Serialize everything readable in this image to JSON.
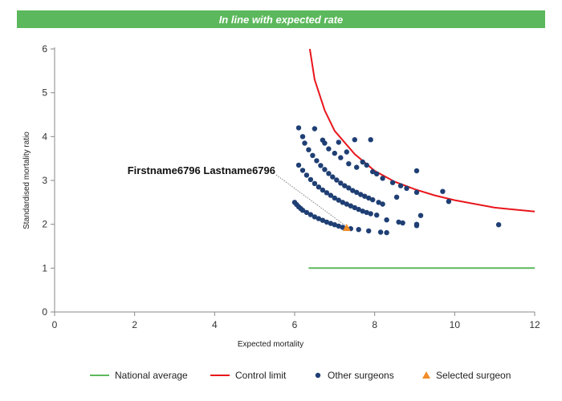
{
  "banner": {
    "text": "In line with expected rate",
    "color": "#5cb85c"
  },
  "chart_data": {
    "type": "scatter",
    "xlabel": "Expected mortality",
    "ylabel": "Standardised mortality ratio",
    "xlim": [
      0,
      12
    ],
    "ylim": [
      0,
      6
    ],
    "xticks": [
      0,
      2,
      4,
      6,
      8,
      10,
      12
    ],
    "yticks": [
      0,
      1,
      2,
      3,
      4,
      5,
      6
    ],
    "grid": false,
    "legend_position": "bottom",
    "annotation": {
      "text": "Firstname6796 Lastname6796",
      "x": 7.3,
      "y": 1.92
    },
    "series": [
      {
        "name": "National average",
        "kind": "line",
        "color": "#5cb85c",
        "points": [
          [
            6.35,
            1.0
          ],
          [
            12.0,
            1.0
          ]
        ]
      },
      {
        "name": "Control limit",
        "kind": "line",
        "color": "#e8151b",
        "points": [
          [
            6.38,
            6.0
          ],
          [
            6.5,
            5.3
          ],
          [
            6.75,
            4.6
          ],
          [
            7.0,
            4.13
          ],
          [
            7.5,
            3.6
          ],
          [
            8.0,
            3.22
          ],
          [
            8.5,
            2.97
          ],
          [
            9.0,
            2.8
          ],
          [
            9.5,
            2.66
          ],
          [
            10.0,
            2.55
          ],
          [
            11.0,
            2.38
          ],
          [
            12.0,
            2.29
          ]
        ]
      },
      {
        "name": "Other surgeons",
        "kind": "scatter",
        "color": "#1f3f74",
        "points": [
          [
            6.0,
            2.5
          ],
          [
            6.05,
            2.45
          ],
          [
            6.1,
            2.4
          ],
          [
            6.15,
            2.36
          ],
          [
            6.2,
            2.32
          ],
          [
            6.3,
            2.27
          ],
          [
            6.4,
            2.22
          ],
          [
            6.5,
            2.17
          ],
          [
            6.6,
            2.13
          ],
          [
            6.7,
            2.09
          ],
          [
            6.8,
            2.05
          ],
          [
            6.9,
            2.02
          ],
          [
            7.0,
            1.99
          ],
          [
            7.1,
            1.96
          ],
          [
            7.2,
            1.93
          ],
          [
            7.4,
            1.9
          ],
          [
            7.6,
            1.88
          ],
          [
            7.85,
            1.85
          ],
          [
            8.15,
            1.82
          ],
          [
            8.3,
            1.81
          ],
          [
            6.1,
            3.35
          ],
          [
            6.2,
            3.23
          ],
          [
            6.3,
            3.12
          ],
          [
            6.4,
            3.02
          ],
          [
            6.5,
            2.93
          ],
          [
            6.6,
            2.85
          ],
          [
            6.7,
            2.78
          ],
          [
            6.8,
            2.72
          ],
          [
            6.9,
            2.66
          ],
          [
            7.0,
            2.6
          ],
          [
            7.1,
            2.55
          ],
          [
            7.2,
            2.5
          ],
          [
            7.3,
            2.46
          ],
          [
            7.4,
            2.42
          ],
          [
            7.5,
            2.38
          ],
          [
            7.6,
            2.34
          ],
          [
            7.7,
            2.3
          ],
          [
            7.8,
            2.27
          ],
          [
            7.9,
            2.24
          ],
          [
            8.05,
            2.21
          ],
          [
            8.3,
            2.1
          ],
          [
            8.6,
            2.05
          ],
          [
            8.7,
            2.03
          ],
          [
            9.05,
            2.0
          ],
          [
            9.05,
            1.97
          ],
          [
            9.15,
            2.2
          ],
          [
            6.25,
            3.85
          ],
          [
            6.35,
            3.7
          ],
          [
            6.45,
            3.57
          ],
          [
            6.55,
            3.45
          ],
          [
            6.65,
            3.34
          ],
          [
            6.75,
            3.25
          ],
          [
            6.85,
            3.16
          ],
          [
            6.95,
            3.08
          ],
          [
            7.05,
            3.01
          ],
          [
            7.15,
            2.94
          ],
          [
            7.25,
            2.88
          ],
          [
            7.35,
            2.83
          ],
          [
            7.45,
            2.77
          ],
          [
            7.55,
            2.73
          ],
          [
            7.65,
            2.68
          ],
          [
            7.75,
            2.64
          ],
          [
            7.85,
            2.6
          ],
          [
            7.95,
            2.56
          ],
          [
            8.1,
            2.5
          ],
          [
            8.2,
            2.46
          ],
          [
            6.1,
            4.2
          ],
          [
            6.2,
            4.0
          ],
          [
            6.5,
            4.18
          ],
          [
            6.7,
            3.92
          ],
          [
            6.75,
            3.85
          ],
          [
            6.85,
            3.72
          ],
          [
            7.0,
            3.62
          ],
          [
            7.1,
            3.87
          ],
          [
            7.15,
            3.52
          ],
          [
            7.3,
            3.65
          ],
          [
            7.35,
            3.38
          ],
          [
            7.5,
            3.93
          ],
          [
            7.55,
            3.3
          ],
          [
            7.7,
            3.42
          ],
          [
            7.8,
            3.35
          ],
          [
            7.9,
            3.93
          ],
          [
            7.95,
            3.2
          ],
          [
            8.05,
            3.15
          ],
          [
            8.2,
            3.05
          ],
          [
            8.45,
            2.95
          ],
          [
            8.55,
            2.62
          ],
          [
            8.65,
            2.88
          ],
          [
            8.8,
            2.82
          ],
          [
            9.05,
            2.73
          ],
          [
            9.05,
            3.22
          ],
          [
            9.7,
            2.75
          ],
          [
            9.85,
            2.52
          ],
          [
            11.1,
            1.99
          ]
        ]
      },
      {
        "name": "Selected surgeon",
        "kind": "marker",
        "color": "#f28c28",
        "points": [
          [
            7.3,
            1.92
          ]
        ]
      }
    ]
  }
}
